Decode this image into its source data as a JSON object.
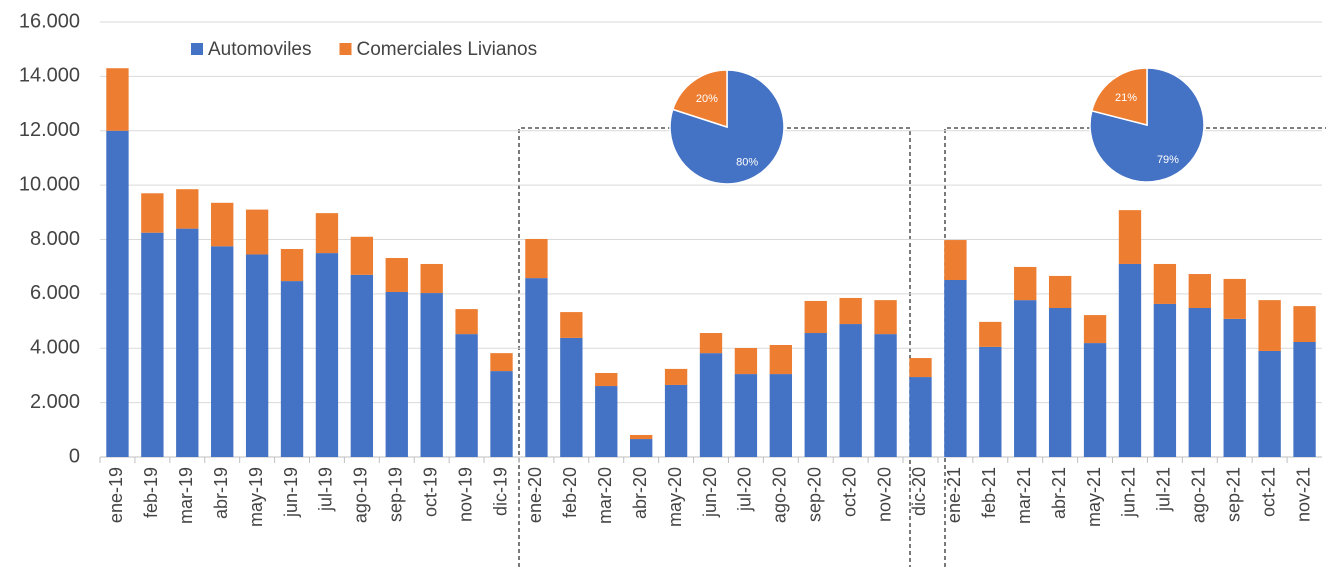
{
  "chart_data": [
    {
      "type": "bar",
      "stacked": true,
      "categories": [
        "ene-19",
        "feb-19",
        "mar-19",
        "abr-19",
        "may-19",
        "jun-19",
        "jul-19",
        "ago-19",
        "sep-19",
        "oct-19",
        "nov-19",
        "dic-19",
        "ene-20",
        "feb-20",
        "mar-20",
        "abr-20",
        "may-20",
        "jun-20",
        "jul-20",
        "ago-20",
        "sep-20",
        "oct-20",
        "nov-20",
        "dic-20",
        "ene-21",
        "feb-21",
        "mar-21",
        "abr-21",
        "may-21",
        "jun-21",
        "jul-21",
        "ago-21",
        "sep-21",
        "oct-21",
        "nov-21"
      ],
      "series": [
        {
          "name": "Automoviles",
          "color": "#4472c4",
          "values": [
            12000,
            8250,
            8400,
            7750,
            7450,
            6470,
            7500,
            6700,
            6070,
            6030,
            4520,
            3160,
            6580,
            4380,
            2610,
            660,
            2650,
            3820,
            3050,
            3050,
            4560,
            4890,
            4520,
            2940,
            6510,
            4050,
            5770,
            5480,
            4190,
            7100,
            5630,
            5480,
            5080,
            3900,
            4230
          ]
        },
        {
          "name": "Comerciales Livianos",
          "color": "#ed7d31",
          "values": [
            2300,
            1450,
            1450,
            1600,
            1650,
            1180,
            1470,
            1400,
            1250,
            1070,
            920,
            660,
            1440,
            950,
            480,
            150,
            590,
            740,
            960,
            1070,
            1180,
            960,
            1250,
            700,
            1470,
            920,
            1220,
            1180,
            1030,
            1980,
            1470,
            1250,
            1470,
            1870,
            1320
          ]
        }
      ],
      "ylim": [
        0,
        16000
      ],
      "yticks": [
        0,
        {
          "value": 2000,
          "label": "2.000"
        },
        {
          "value": 4000,
          "label": "4.000"
        },
        {
          "value": 6000,
          "label": "6.000"
        },
        {
          "value": 8000,
          "label": "8.000"
        },
        {
          "value": 10000,
          "label": "10.000"
        },
        {
          "value": 12000,
          "label": "12.000"
        },
        {
          "value": 14000,
          "label": "14.000"
        },
        {
          "value": 16000,
          "label": "16.000"
        }
      ],
      "grid": true,
      "legend": "top"
    },
    {
      "type": "pie",
      "values": [
        80,
        20
      ],
      "value_labels": [
        "80%",
        "20%"
      ],
      "colors": [
        "#4472c4",
        "#ed7d31"
      ]
    },
    {
      "type": "pie",
      "values": [
        79,
        21
      ],
      "value_labels": [
        "79%",
        "21%"
      ],
      "colors": [
        "#4472c4",
        "#ed7d31"
      ]
    }
  ]
}
